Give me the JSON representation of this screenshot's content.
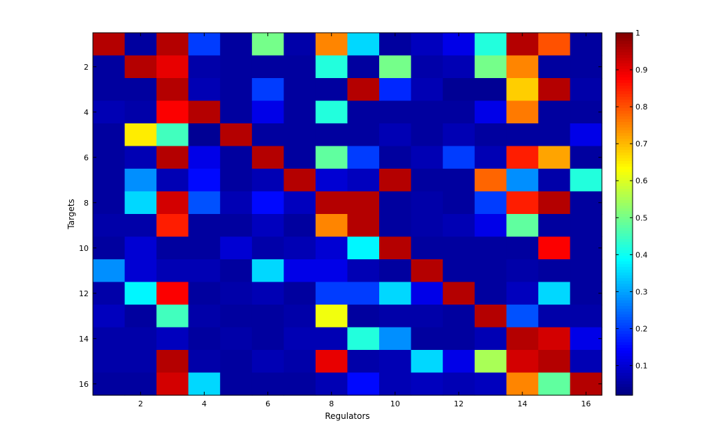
{
  "chart_data": {
    "type": "heatmap",
    "title": "",
    "xlabel": "Regulators",
    "ylabel": "Targets",
    "x_ticks": [
      "2",
      "4",
      "6",
      "8",
      "10",
      "12",
      "14",
      "16"
    ],
    "y_ticks": [
      "2",
      "4",
      "6",
      "8",
      "10",
      "12",
      "14",
      "16"
    ],
    "x_range": [
      1,
      16
    ],
    "y_range": [
      1,
      16
    ],
    "colorscale": "jet",
    "color_range": [
      0.02,
      1
    ],
    "colorbar_ticks": [
      "0.1",
      "0.2",
      "0.3",
      "0.4",
      "0.5",
      "0.6",
      "0.7",
      "0.8",
      "0.9",
      "1"
    ],
    "grid": false,
    "values": [
      [
        0.95,
        0.05,
        0.95,
        0.2,
        0.05,
        0.5,
        0.06,
        0.75,
        0.35,
        0.05,
        0.08,
        0.12,
        0.42,
        0.95,
        0.8,
        0.05
      ],
      [
        0.05,
        0.95,
        0.9,
        0.06,
        0.05,
        0.05,
        0.05,
        0.42,
        0.05,
        0.5,
        0.06,
        0.07,
        0.5,
        0.75,
        0.05,
        0.05
      ],
      [
        0.05,
        0.05,
        0.95,
        0.07,
        0.05,
        0.2,
        0.05,
        0.05,
        0.95,
        0.18,
        0.07,
        0.04,
        0.04,
        0.68,
        0.95,
        0.06
      ],
      [
        0.07,
        0.06,
        0.88,
        0.95,
        0.05,
        0.12,
        0.05,
        0.42,
        0.05,
        0.05,
        0.05,
        0.05,
        0.12,
        0.76,
        0.05,
        0.05
      ],
      [
        0.05,
        0.65,
        0.45,
        0.04,
        0.95,
        0.05,
        0.05,
        0.05,
        0.05,
        0.07,
        0.05,
        0.07,
        0.05,
        0.05,
        0.05,
        0.12
      ],
      [
        0.05,
        0.07,
        0.95,
        0.12,
        0.05,
        0.95,
        0.05,
        0.48,
        0.2,
        0.05,
        0.07,
        0.2,
        0.07,
        0.85,
        0.72,
        0.05
      ],
      [
        0.05,
        0.28,
        0.07,
        0.15,
        0.05,
        0.07,
        0.95,
        0.1,
        0.08,
        0.95,
        0.05,
        0.05,
        0.78,
        0.28,
        0.06,
        0.42
      ],
      [
        0.05,
        0.35,
        0.92,
        0.22,
        0.07,
        0.15,
        0.08,
        0.95,
        0.95,
        0.05,
        0.06,
        0.05,
        0.2,
        0.85,
        0.95,
        0.05
      ],
      [
        0.06,
        0.06,
        0.85,
        0.05,
        0.05,
        0.08,
        0.05,
        0.75,
        0.95,
        0.05,
        0.06,
        0.07,
        0.12,
        0.48,
        0.05,
        0.05
      ],
      [
        0.05,
        0.1,
        0.05,
        0.05,
        0.1,
        0.06,
        0.07,
        0.1,
        0.38,
        0.95,
        0.05,
        0.05,
        0.05,
        0.05,
        0.88,
        0.05
      ],
      [
        0.28,
        0.1,
        0.07,
        0.07,
        0.05,
        0.35,
        0.12,
        0.12,
        0.07,
        0.05,
        0.95,
        0.05,
        0.05,
        0.06,
        0.05,
        0.05
      ],
      [
        0.06,
        0.38,
        0.88,
        0.05,
        0.06,
        0.07,
        0.05,
        0.2,
        0.2,
        0.35,
        0.12,
        0.95,
        0.05,
        0.08,
        0.35,
        0.05
      ],
      [
        0.08,
        0.05,
        0.45,
        0.06,
        0.05,
        0.05,
        0.06,
        0.62,
        0.05,
        0.06,
        0.06,
        0.05,
        0.95,
        0.22,
        0.06,
        0.06
      ],
      [
        0.06,
        0.06,
        0.08,
        0.05,
        0.06,
        0.05,
        0.07,
        0.07,
        0.42,
        0.28,
        0.05,
        0.05,
        0.07,
        0.95,
        0.92,
        0.12
      ],
      [
        0.06,
        0.06,
        0.95,
        0.06,
        0.05,
        0.07,
        0.06,
        0.9,
        0.06,
        0.07,
        0.35,
        0.12,
        0.55,
        0.92,
        0.95,
        0.07
      ],
      [
        0.05,
        0.05,
        0.92,
        0.35,
        0.05,
        0.05,
        0.05,
        0.07,
        0.15,
        0.07,
        0.08,
        0.07,
        0.08,
        0.75,
        0.48,
        0.95
      ]
    ]
  }
}
